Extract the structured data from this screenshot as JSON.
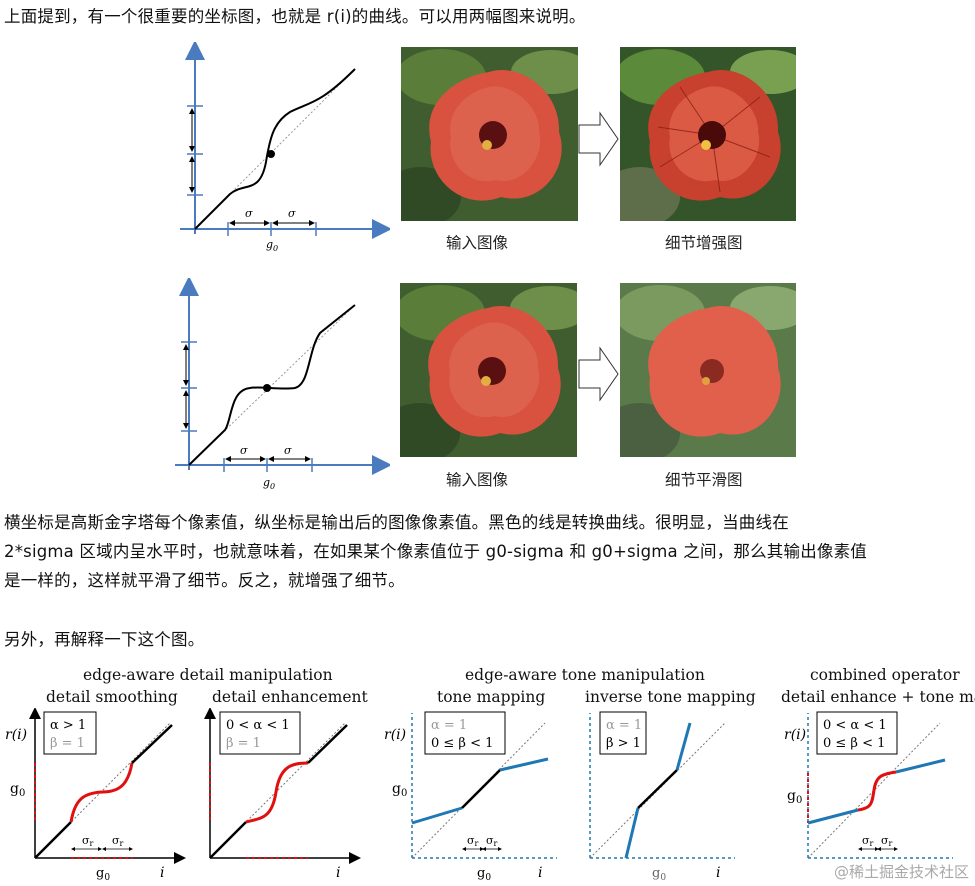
{
  "intro": "上面提到，有一个很重要的坐标图，也就是 r(i)的曲线。可以用两幅图来说明。",
  "row1": {
    "caption_in": "输入图像",
    "caption_out": "细节增强图"
  },
  "row2": {
    "caption_in": "输入图像",
    "caption_out": "细节平滑图"
  },
  "axis": {
    "sigma": "σ",
    "g0": "g",
    "g0_sub": "0"
  },
  "body": {
    "line1": "横坐标是高斯金字塔每个像素值，纵坐标是输出后的图像像素值。黑色的线是转换曲线。很明显，当曲线在",
    "line2": "2*sigma 区域内呈水平时，也就意味着，在如果某个像素值位于 g0-sigma 和 g0+sigma 之间，那么其输出像素值",
    "line3": "是一样的，这样就平滑了细节。反之，就增强了细节。"
  },
  "also": "另外，再解释一下这个图。",
  "figure": {
    "group1_title": "edge-aware detail manipulation",
    "group2_title": "edge-aware tone manipulation",
    "group3_title": "combined operator",
    "panels": [
      {
        "title": "detail smoothing",
        "l1": "α > 1",
        "l2": "β = 1"
      },
      {
        "title": "detail enhancement",
        "l1": "0 < α < 1",
        "l2": "β = 1"
      },
      {
        "title": "tone mapping",
        "l1": "α = 1",
        "l2": "0 ≤ β < 1"
      },
      {
        "title": "inverse tone mapping",
        "l1": "α = 1",
        "l2": "β > 1"
      },
      {
        "title": "detail enhance + tone map",
        "l1": "0 < α < 1",
        "l2": "0 ≤ β < 1"
      }
    ],
    "r_label": "r(i)",
    "g0_label": "g",
    "g0_sub": "0",
    "i_label": "i",
    "sigma_r": "σ",
    "sigma_r_sub": "r"
  },
  "watermark": "@稀土掘金技术社区",
  "colors": {
    "axis_blue": "#4a7bbf",
    "curve_red": "#e01010",
    "tone_blue": "#1f78b4"
  }
}
